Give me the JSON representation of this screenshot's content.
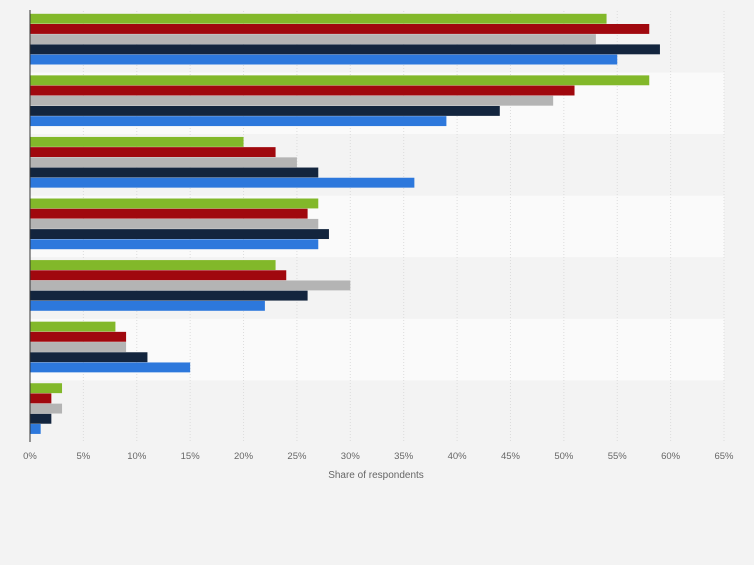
{
  "chart_data": {
    "type": "bar",
    "orientation": "horizontal",
    "xlabel": "Share of respondents",
    "ylabel": "",
    "xlim": [
      0,
      65
    ],
    "x_ticks": [
      "0%",
      "5%",
      "10%",
      "15%",
      "20%",
      "25%",
      "30%",
      "35%",
      "40%",
      "45%",
      "50%",
      "55%",
      "60%",
      "65%"
    ],
    "grid": true,
    "legend": "none",
    "categories": [
      "",
      "",
      "",
      "",
      "",
      "",
      ""
    ],
    "series": [
      {
        "color": "#82b82a",
        "values": [
          54,
          58,
          20,
          27,
          23,
          8,
          3
        ]
      },
      {
        "color": "#a0080e",
        "values": [
          58,
          51,
          23,
          26,
          24,
          9,
          2
        ]
      },
      {
        "color": "#b4b4b4",
        "values": [
          53,
          49,
          25,
          27,
          30,
          9,
          3
        ]
      },
      {
        "color": "#13253e",
        "values": [
          59,
          44,
          27,
          28,
          26,
          11,
          2
        ]
      },
      {
        "color": "#2d78dc",
        "values": [
          55,
          39,
          36,
          27,
          22,
          15,
          1
        ]
      }
    ]
  }
}
